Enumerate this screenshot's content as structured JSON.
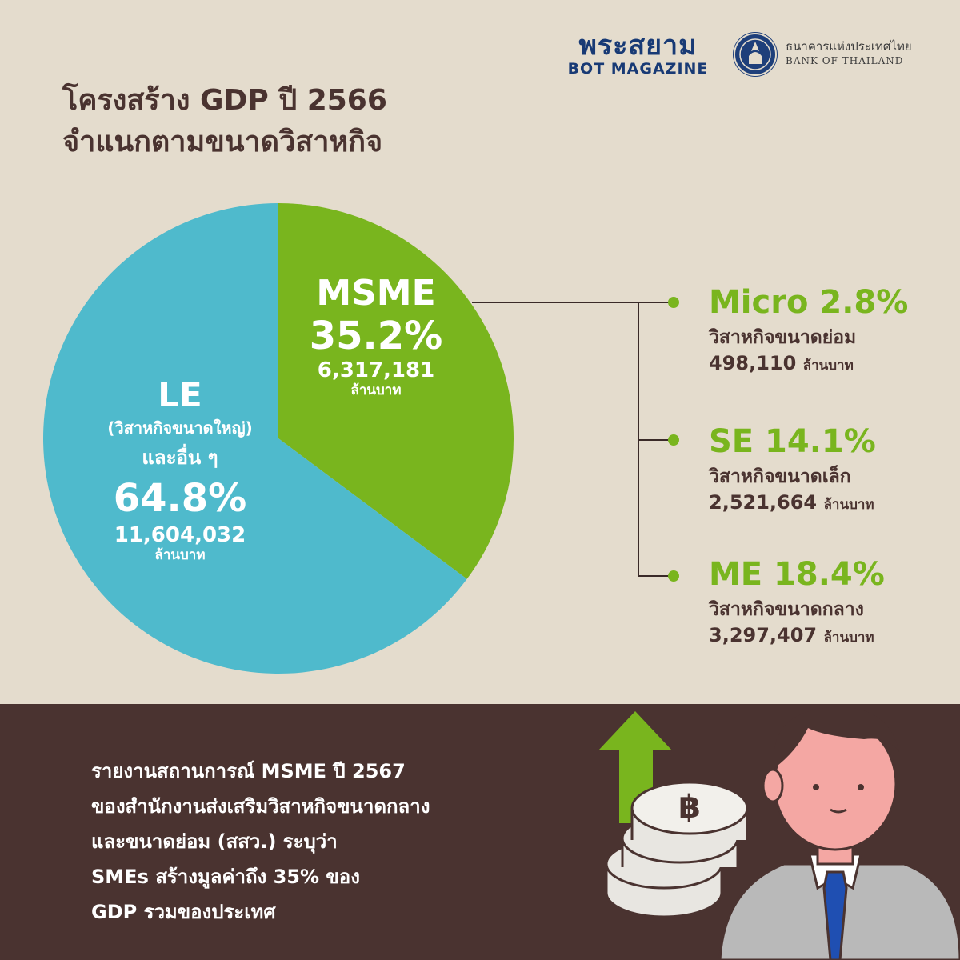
{
  "header": {
    "brand_th": "พระสยาม",
    "brand_en": "BOT MAGAZINE",
    "bank_th": "ธนาคารแห่งประเทศไทย",
    "bank_en": "BANK OF THAILAND"
  },
  "title": {
    "line1": "โครงสร้าง GDP ปี 2566",
    "line2": "จำแนกตามขนาดวิสาหกิจ"
  },
  "pie_labels": {
    "msme": {
      "name": "MSME",
      "pct": "35.2%",
      "value": "6,317,181",
      "unit": "ล้านบาท"
    },
    "le": {
      "name": "LE",
      "desc": "(วิสาหกิจขนาดใหญ่)",
      "desc2": "และอื่น ๆ",
      "pct": "64.8%",
      "value": "11,604,032",
      "unit": "ล้านบาท"
    }
  },
  "segments": [
    {
      "head": "Micro 2.8%",
      "desc": "วิสาหกิจขนาดย่อม",
      "value": "498,110",
      "unit": "ล้านบาท"
    },
    {
      "head": "SE 14.1%",
      "desc": "วิสาหกิจขนาดเล็ก",
      "value": "2,521,664",
      "unit": "ล้านบาท"
    },
    {
      "head": "ME 18.4%",
      "desc": "วิสาหกิจขนาดกลาง",
      "value": "3,297,407",
      "unit": "ล้านบาท"
    }
  ],
  "footer": {
    "lines": [
      "รายงานสถานการณ์ MSME ปี 2567",
      "ของสำนักงานส่งเสริมวิสาหกิจขนาดกลาง",
      "และขนาดย่อม (สสว.) ระบุว่า",
      "SMEs สร้างมูลค่าถึง 35% ของ",
      "GDP รวมของประเทศ"
    ]
  },
  "colors": {
    "background": "#e4dccd",
    "footer_bg": "#4a3330",
    "msme": "#79b51e",
    "le": "#4fbacc",
    "brand": "#183a75",
    "text": "#4a3330"
  },
  "chart_data": {
    "type": "pie",
    "title": "โครงสร้าง GDP ปี 2566 จำแนกตามขนาดวิสาหกิจ",
    "slices": [
      {
        "label": "MSME",
        "percent": 35.2,
        "value": 6317181,
        "color": "#79b51e"
      },
      {
        "label": "LE (วิสาหกิจขนาดใหญ่) และอื่น ๆ",
        "percent": 64.8,
        "value": 11604032,
        "color": "#4fbacc"
      }
    ],
    "breakdown": [
      {
        "label": "Micro",
        "percent": 2.8,
        "value": 498110
      },
      {
        "label": "SE",
        "percent": 14.1,
        "value": 2521664
      },
      {
        "label": "ME",
        "percent": 18.4,
        "value": 3297407
      }
    ],
    "unit": "ล้านบาท"
  }
}
